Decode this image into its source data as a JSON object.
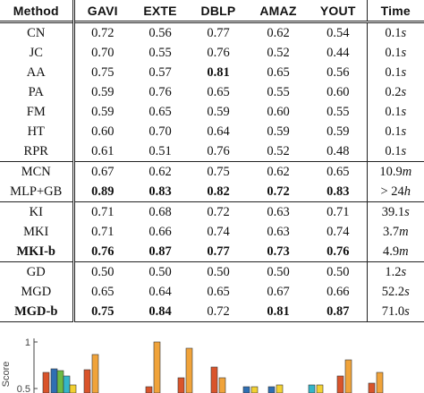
{
  "table": {
    "headers": [
      "Method",
      "GAVI",
      "EXTE",
      "DBLP",
      "AMAZ",
      "YOUT",
      "Time"
    ],
    "groups": [
      {
        "rows": [
          {
            "method": "CN",
            "values": [
              "0.72",
              "0.56",
              "0.77",
              "0.62",
              "0.54"
            ],
            "time_value": "0.1",
            "time_unit": "s",
            "bold": []
          },
          {
            "method": "JC",
            "values": [
              "0.70",
              "0.55",
              "0.76",
              "0.52",
              "0.44"
            ],
            "time_value": "0.1",
            "time_unit": "s",
            "bold": []
          },
          {
            "method": "AA",
            "values": [
              "0.75",
              "0.57",
              "0.81",
              "0.65",
              "0.56"
            ],
            "time_value": "0.1",
            "time_unit": "s",
            "bold": [
              2
            ]
          },
          {
            "method": "PA",
            "values": [
              "0.59",
              "0.76",
              "0.65",
              "0.55",
              "0.60"
            ],
            "time_value": "0.2",
            "time_unit": "s",
            "bold": []
          },
          {
            "method": "FM",
            "values": [
              "0.59",
              "0.65",
              "0.59",
              "0.60",
              "0.55"
            ],
            "time_value": "0.1",
            "time_unit": "s",
            "bold": []
          },
          {
            "method": "HT",
            "values": [
              "0.60",
              "0.70",
              "0.64",
              "0.59",
              "0.59"
            ],
            "time_value": "0.1",
            "time_unit": "s",
            "bold": []
          },
          {
            "method": "RPR",
            "values": [
              "0.61",
              "0.51",
              "0.76",
              "0.52",
              "0.48"
            ],
            "time_value": "0.1",
            "time_unit": "s",
            "bold": []
          }
        ]
      },
      {
        "rows": [
          {
            "method": "MCN",
            "values": [
              "0.67",
              "0.62",
              "0.75",
              "0.62",
              "0.65"
            ],
            "time_value": "10.9",
            "time_unit": "m",
            "bold": []
          },
          {
            "method": "MLP+GB",
            "values": [
              "0.89",
              "0.83",
              "0.82",
              "0.72",
              "0.83"
            ],
            "time_value": "> 24",
            "time_unit": "h",
            "bold": [
              0,
              1,
              2,
              3,
              4
            ]
          }
        ]
      },
      {
        "rows": [
          {
            "method": "KI",
            "values": [
              "0.71",
              "0.68",
              "0.72",
              "0.63",
              "0.71"
            ],
            "time_value": "39.1",
            "time_unit": "s",
            "bold": []
          },
          {
            "method": "MKI",
            "values": [
              "0.71",
              "0.66",
              "0.74",
              "0.63",
              "0.74"
            ],
            "time_value": "3.7",
            "time_unit": "m",
            "bold": []
          },
          {
            "method": "MKI-b",
            "values": [
              "0.76",
              "0.87",
              "0.77",
              "0.73",
              "0.76"
            ],
            "time_value": "4.9",
            "time_unit": "m",
            "bold": [
              0,
              1,
              2,
              3,
              4
            ],
            "method_bold": true
          }
        ]
      },
      {
        "rows": [
          {
            "method": "GD",
            "values": [
              "0.50",
              "0.50",
              "0.50",
              "0.50",
              "0.50"
            ],
            "time_value": "1.2",
            "time_unit": "s",
            "bold": []
          },
          {
            "method": "MGD",
            "values": [
              "0.65",
              "0.64",
              "0.65",
              "0.67",
              "0.66"
            ],
            "time_value": "52.2",
            "time_unit": "s",
            "bold": []
          },
          {
            "method": "MGD-b",
            "values": [
              "0.75",
              "0.84",
              "0.72",
              "0.81",
              "0.87"
            ],
            "time_value": "71.0",
            "time_unit": "s",
            "bold": [
              0,
              1,
              3,
              4
            ],
            "method_bold": true
          }
        ]
      }
    ]
  },
  "chart_fragment": {
    "ylabel": "Score",
    "tick_labels": [
      "1",
      "0.5"
    ],
    "colors": {
      "blue": "#2f6fb3",
      "cyan": "#35b6c9",
      "green": "#6dbb45",
      "yellow": "#f2d032",
      "orange": "#f0a33a",
      "red": "#d9542b",
      "axis": "#444444"
    }
  }
}
